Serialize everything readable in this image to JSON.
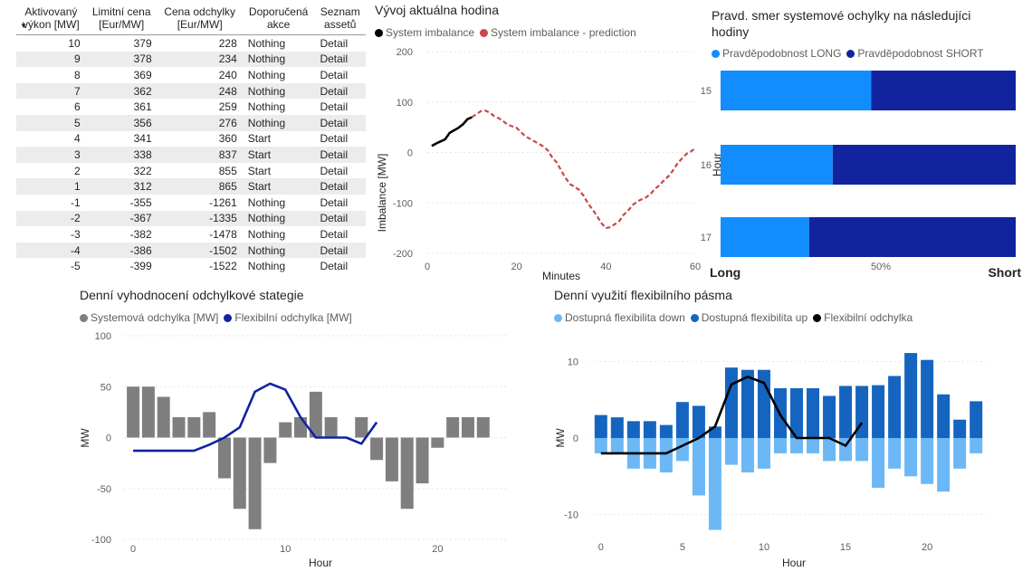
{
  "table": {
    "headers": [
      [
        "Aktivovaný",
        "výkon [MW]"
      ],
      [
        "Limitní cena",
        "[Eur/MW]"
      ],
      [
        "Cena odchylky",
        "[Eur/MW]"
      ],
      [
        "Doporučená",
        "akce"
      ],
      [
        "Seznam",
        "assetů"
      ]
    ],
    "rows": [
      [
        "10",
        "379",
        "228",
        "Nothing",
        "Detail"
      ],
      [
        "9",
        "378",
        "234",
        "Nothing",
        "Detail"
      ],
      [
        "8",
        "369",
        "240",
        "Nothing",
        "Detail"
      ],
      [
        "7",
        "362",
        "248",
        "Nothing",
        "Detail"
      ],
      [
        "6",
        "361",
        "259",
        "Nothing",
        "Detail"
      ],
      [
        "5",
        "356",
        "276",
        "Nothing",
        "Detail"
      ],
      [
        "4",
        "341",
        "360",
        "Start",
        "Detail"
      ],
      [
        "3",
        "338",
        "837",
        "Start",
        "Detail"
      ],
      [
        "2",
        "322",
        "855",
        "Start",
        "Detail"
      ],
      [
        "1",
        "312",
        "865",
        "Start",
        "Detail"
      ],
      [
        "-1",
        "-355",
        "-1261",
        "Nothing",
        "Detail"
      ],
      [
        "-2",
        "-367",
        "-1335",
        "Nothing",
        "Detail"
      ],
      [
        "-3",
        "-382",
        "-1478",
        "Nothing",
        "Detail"
      ],
      [
        "-4",
        "-386",
        "-1502",
        "Nothing",
        "Detail"
      ],
      [
        "-5",
        "-399",
        "-1522",
        "Nothing",
        "Detail"
      ]
    ]
  },
  "chart_data": [
    {
      "type": "line",
      "title": "Vývoj aktuálna hodina",
      "xlabel": "Minutes",
      "ylabel": "Imbalance [MW]",
      "xlim": [
        0,
        60
      ],
      "ylim": [
        -200,
        200
      ],
      "xticks": [
        "0",
        "20",
        "40",
        "60"
      ],
      "yticks": [
        "200",
        "100",
        "0",
        "-100",
        "-200"
      ],
      "series": [
        {
          "name": "System imbalance",
          "color": "#000000",
          "dashed": false,
          "x": [
            1,
            2,
            3,
            4,
            5,
            6,
            7,
            8,
            9,
            10
          ],
          "y": [
            13,
            18,
            22,
            26,
            39,
            44,
            49,
            56,
            66,
            70
          ]
        },
        {
          "name": "System imbalance - prediction",
          "color": "#c8474b",
          "dashed": true,
          "x": [
            10,
            11,
            12,
            13,
            14,
            15,
            16,
            17,
            18,
            19,
            20,
            21,
            22,
            23,
            24,
            25,
            26,
            27,
            28,
            29,
            30,
            31,
            32,
            33,
            34,
            35,
            36,
            37,
            38,
            39,
            40,
            41,
            42,
            43,
            44,
            45,
            46,
            47,
            48,
            49,
            50,
            51,
            52,
            53,
            54,
            55,
            56,
            57,
            58,
            59,
            60
          ],
          "y": [
            70,
            76,
            82,
            83,
            79,
            72,
            68,
            62,
            55,
            52,
            49,
            40,
            32,
            27,
            22,
            17,
            12,
            4,
            -10,
            -20,
            -36,
            -51,
            -63,
            -68,
            -74,
            -86,
            -101,
            -113,
            -126,
            -140,
            -150,
            -148,
            -142,
            -136,
            -123,
            -115,
            -104,
            -97,
            -93,
            -89,
            -82,
            -72,
            -65,
            -55,
            -47,
            -36,
            -22,
            -12,
            -3,
            2,
            8
          ]
        }
      ]
    },
    {
      "type": "bar",
      "orientation": "horizontal",
      "stacked": true,
      "title": "Pravd. smer systemové ochylky na následujíci hodiny",
      "ylabel": "Hour",
      "left_label": "Long",
      "right_label": "Short",
      "xticks": [
        "50%"
      ],
      "categories": [
        "15",
        "16",
        "17"
      ],
      "series": [
        {
          "name": "Pravděpodobnost LONG",
          "color": "#118dff",
          "values": [
            0.51,
            0.38,
            0.3
          ]
        },
        {
          "name": "Pravděpodobnost SHORT",
          "color": "#12239e",
          "values": [
            0.49,
            0.62,
            0.7
          ]
        }
      ]
    },
    {
      "type": "bar",
      "title": "Denní vyhodnocení odchylkové stategie",
      "xlabel": "Hour",
      "ylabel": "MW",
      "xlim": [
        -0.6,
        24.5
      ],
      "ylim": [
        -100,
        100
      ],
      "xticks": [
        "0",
        "10",
        "20"
      ],
      "yticks": [
        "100",
        "50",
        "0",
        "-50",
        "-100"
      ],
      "series": [
        {
          "name": "Systemová odchylka [MW]",
          "kind": "bar",
          "color": "#7f7f7f",
          "x": [
            0,
            1,
            2,
            3,
            4,
            5,
            6,
            7,
            8,
            9,
            10,
            11,
            12,
            13,
            14,
            15,
            16,
            17,
            18,
            19,
            20,
            21,
            22,
            23
          ],
          "values": [
            50,
            50,
            40,
            20,
            20,
            25,
            -40,
            -70,
            -90,
            -25,
            15,
            20,
            45,
            20,
            0,
            20,
            -22,
            -43,
            -70,
            -45,
            -10,
            20,
            20,
            20
          ]
        },
        {
          "name": "Flexibilní odchylka [MW]",
          "kind": "line",
          "color": "#12239e",
          "x": [
            0,
            1,
            2,
            3,
            4,
            5,
            6,
            7,
            8,
            9,
            10,
            11,
            12,
            13,
            14,
            15,
            16
          ],
          "values": [
            -13,
            -13,
            -13,
            -13,
            -13,
            -7,
            0,
            10,
            45,
            53,
            47,
            20,
            0,
            0,
            0,
            -6,
            15
          ]
        }
      ]
    },
    {
      "type": "bar",
      "title": "Denní využití flexibilního pásma",
      "xlabel": "Hour",
      "ylabel": "MW",
      "xlim": [
        -0.6,
        23.6
      ],
      "ylim": [
        -13,
        13
      ],
      "xticks": [
        "0",
        "5",
        "10",
        "15",
        "20"
      ],
      "yticks": [
        "10",
        "0",
        "-10"
      ],
      "series": [
        {
          "name": "Dostupná flexibilita down",
          "kind": "bar",
          "color": "#6cb8f6",
          "x": [
            0,
            1,
            2,
            3,
            4,
            5,
            6,
            7,
            8,
            9,
            10,
            11,
            12,
            13,
            14,
            15,
            16,
            17,
            18,
            19,
            20,
            21,
            22,
            23
          ],
          "values": [
            -2,
            -2,
            -4,
            -4,
            -4.5,
            -3,
            -7.5,
            -12,
            -3.5,
            -4.5,
            -4,
            -2,
            -2,
            -2,
            -3,
            -3,
            -3,
            -6.5,
            -4,
            -5,
            -6,
            -7,
            -4,
            -2
          ]
        },
        {
          "name": "Dostupná flexibilita up",
          "kind": "bar",
          "color": "#1565c0",
          "x": [
            0,
            1,
            2,
            3,
            4,
            5,
            6,
            7,
            8,
            9,
            10,
            11,
            12,
            13,
            14,
            15,
            16,
            17,
            18,
            19,
            20,
            21,
            22,
            23
          ],
          "values": [
            3,
            2.7,
            2.2,
            2.2,
            1.7,
            4.7,
            4.2,
            1.5,
            9.2,
            8.9,
            8.9,
            6.5,
            6.5,
            6.5,
            5.5,
            6.8,
            6.8,
            6.9,
            8.1,
            11.1,
            10.2,
            5.7,
            2.4,
            4.8
          ]
        },
        {
          "name": "Flexibilní odchylka",
          "kind": "line",
          "color": "#000000",
          "x": [
            0,
            1,
            2,
            3,
            4,
            5,
            6,
            7,
            8,
            9,
            10,
            11,
            12,
            13,
            14,
            15,
            16
          ],
          "values": [
            -2,
            -2,
            -2,
            -2,
            -2,
            -1,
            0,
            1.5,
            7,
            8,
            7.2,
            3,
            0,
            0,
            0,
            -1,
            2
          ]
        }
      ]
    }
  ]
}
